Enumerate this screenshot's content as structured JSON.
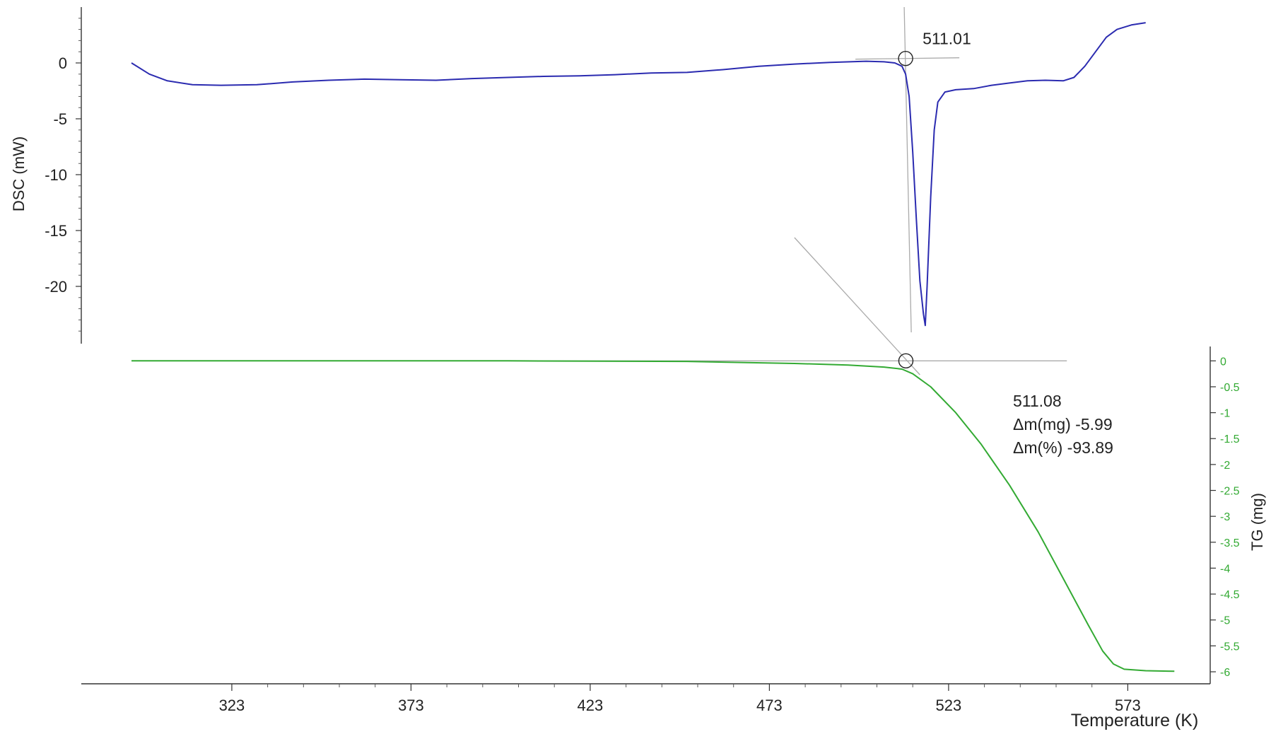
{
  "chart_data": {
    "type": "line",
    "xlabel": "Temperature (K)",
    "x_ticks": [
      323,
      373,
      423,
      473,
      523,
      573
    ],
    "xlim": [
      281,
      596
    ],
    "dsc": {
      "ylabel": "DSC (mW)",
      "y_ticks": [
        0,
        -5,
        -10,
        -15,
        -20
      ],
      "ylim": [
        -25,
        5
      ],
      "color": "#2b2bb0",
      "points": [
        [
          295,
          0
        ],
        [
          300,
          -1.0
        ],
        [
          305,
          -1.6
        ],
        [
          312,
          -1.95
        ],
        [
          320,
          -2.0
        ],
        [
          330,
          -1.95
        ],
        [
          340,
          -1.7
        ],
        [
          350,
          -1.55
        ],
        [
          360,
          -1.45
        ],
        [
          370,
          -1.5
        ],
        [
          380,
          -1.55
        ],
        [
          390,
          -1.4
        ],
        [
          400,
          -1.3
        ],
        [
          410,
          -1.2
        ],
        [
          420,
          -1.15
        ],
        [
          430,
          -1.05
        ],
        [
          440,
          -0.9
        ],
        [
          450,
          -0.85
        ],
        [
          460,
          -0.6
        ],
        [
          470,
          -0.3
        ],
        [
          480,
          -0.1
        ],
        [
          490,
          0.05
        ],
        [
          500,
          0.15
        ],
        [
          505,
          0.1
        ],
        [
          508,
          0.0
        ],
        [
          510,
          -0.3
        ],
        [
          511,
          -1.0
        ],
        [
          512,
          -3
        ],
        [
          513,
          -8
        ],
        [
          514,
          -14
        ],
        [
          515,
          -19.5
        ],
        [
          516,
          -22.5
        ],
        [
          516.5,
          -23.5
        ],
        [
          517,
          -20
        ],
        [
          518,
          -12
        ],
        [
          519,
          -6
        ],
        [
          520,
          -3.5
        ],
        [
          522,
          -2.6
        ],
        [
          525,
          -2.4
        ],
        [
          530,
          -2.3
        ],
        [
          535,
          -2.0
        ],
        [
          540,
          -1.8
        ],
        [
          545,
          -1.6
        ],
        [
          550,
          -1.55
        ],
        [
          555,
          -1.6
        ],
        [
          558,
          -1.3
        ],
        [
          561,
          -0.3
        ],
        [
          564,
          1.0
        ],
        [
          567,
          2.3
        ],
        [
          570,
          3.0
        ],
        [
          574,
          3.4
        ],
        [
          578,
          3.6
        ]
      ]
    },
    "tg": {
      "ylabel": "TG (mg)",
      "y_ticks": [
        0,
        -0.5,
        -1,
        -1.5,
        -2,
        -2.5,
        -3,
        -3.5,
        -4,
        -4.5,
        -5,
        -5.5,
        -6
      ],
      "y_tick_labels": [
        "0",
        "-0.5",
        "-1",
        "-1.5",
        "-2",
        "-2.5",
        "-3",
        "-3.5",
        "-4",
        "-4.5",
        "-5",
        "-5.5",
        "-6"
      ],
      "ylim": [
        -6.3,
        0.25
      ],
      "color": "#33aa33",
      "points": [
        [
          295,
          0.0
        ],
        [
          350,
          0.0
        ],
        [
          400,
          0.0
        ],
        [
          450,
          -0.01
        ],
        [
          480,
          -0.05
        ],
        [
          495,
          -0.08
        ],
        [
          505,
          -0.12
        ],
        [
          510,
          -0.16
        ],
        [
          513,
          -0.25
        ],
        [
          518,
          -0.5
        ],
        [
          525,
          -1.0
        ],
        [
          532,
          -1.6
        ],
        [
          540,
          -2.4
        ],
        [
          548,
          -3.3
        ],
        [
          555,
          -4.2
        ],
        [
          562,
          -5.1
        ],
        [
          566,
          -5.6
        ],
        [
          569,
          -5.85
        ],
        [
          572,
          -5.95
        ],
        [
          578,
          -5.98
        ],
        [
          586,
          -5.99
        ]
      ]
    },
    "annotations": {
      "dsc_onset": {
        "label": "511.01",
        "x": 511.01,
        "y": 0.4
      },
      "tg_onset": {
        "x": 511.08,
        "y": 0,
        "lines": [
          "511.08",
          "Δm(mg) -5.99",
          "Δm(%) -93.89"
        ]
      }
    }
  }
}
